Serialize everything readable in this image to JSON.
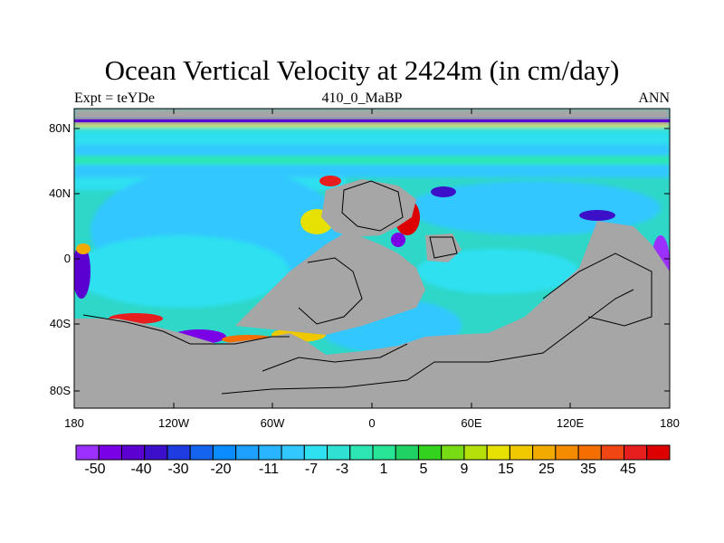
{
  "title": "Ocean Vertical Velocity at 2424m (in cm/day)",
  "subtitle_left": "Expt = teYDe",
  "subtitle_center": "410_0_MaBP",
  "subtitle_right": "ANN",
  "lat_ticks": [
    "80N",
    "40N",
    "0",
    "40S",
    "80S"
  ],
  "lon_ticks": [
    "180",
    "120W",
    "60W",
    "0",
    "60E",
    "120E",
    "180"
  ],
  "colorbar": {
    "labels": [
      "-50",
      "-40",
      "-30",
      "-20",
      "-11",
      "-7",
      "-3",
      "1",
      "5",
      "9",
      "15",
      "25",
      "35",
      "45"
    ],
    "colors": [
      "#9b30ff",
      "#7a00e6",
      "#5a00d0",
      "#3c10c8",
      "#1e3ce0",
      "#1464f0",
      "#0a8cff",
      "#1ea0ff",
      "#28b4ff",
      "#32c8ff",
      "#2ee0f0",
      "#30e0d0",
      "#2ee6b4",
      "#28e696",
      "#20d264",
      "#32d21e",
      "#78dc14",
      "#b4e10a",
      "#e6e100",
      "#f0c800",
      "#f0aa00",
      "#f58c00",
      "#f56e00",
      "#f04614",
      "#e61e1e",
      "#dc0000"
    ]
  },
  "colors": {
    "land": "#a6a6a6",
    "ocean": "#2ed7c8",
    "coast": "#000000"
  }
}
